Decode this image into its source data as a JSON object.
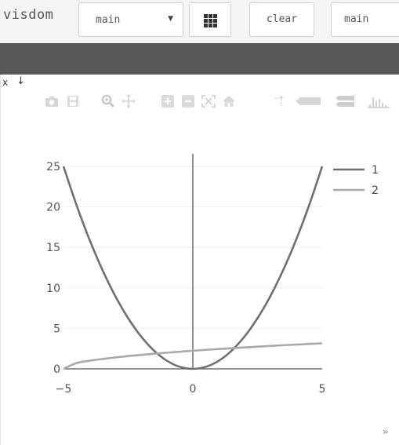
{
  "toolbar": {
    "brand": "visdom",
    "env_select_value": "main",
    "clear_label": "clear",
    "view_input_value": "main"
  },
  "pane": {
    "close_label": "x",
    "save_icon": "download-arrow-icon",
    "resize_icon": "resize-grip-icon",
    "modebar_icons": [
      "camera-icon",
      "save-icon",
      "zoom-icon",
      "pan-icon",
      "zoom-in-icon",
      "zoom-out-icon",
      "autoscale-icon",
      "home-icon",
      "spike-lines-icon",
      "hover-closest-icon",
      "hover-compare-icon",
      "plotly-logo-icon"
    ]
  },
  "colors": {
    "series_1": "#6f6f6f",
    "series_2": "#a9a9a9",
    "axis": "#555555",
    "grid": "#eeeeee"
  },
  "chart_data": {
    "type": "line",
    "x_range": [
      -5,
      5
    ],
    "y_range": [
      0,
      25
    ],
    "x_ticks": [
      -5,
      0,
      5
    ],
    "x_tick_labels": [
      "−5",
      "0",
      "5"
    ],
    "y_ticks": [
      0,
      5,
      10,
      15,
      20,
      25
    ],
    "y_tick_labels": [
      "0",
      "5",
      "10",
      "15",
      "20",
      "25"
    ],
    "grid": true,
    "legend_position": "top-right",
    "title": "",
    "xlabel": "",
    "ylabel": "",
    "series": [
      {
        "name": "1",
        "x": [
          -5,
          -4.5,
          -4,
          -3.5,
          -3,
          -2.5,
          -2,
          -1.5,
          -1,
          -0.5,
          0,
          0.5,
          1,
          1.5,
          2,
          2.5,
          3,
          3.5,
          4,
          4.5,
          5
        ],
        "y": [
          25,
          20.25,
          16,
          12.25,
          9,
          6.25,
          4,
          2.25,
          1,
          0.25,
          0,
          0.25,
          1,
          2.25,
          4,
          6.25,
          9,
          12.25,
          16,
          20.25,
          25
        ]
      },
      {
        "name": "2",
        "x": [
          -5,
          -4.5,
          -4,
          -3.5,
          -3,
          -2.5,
          -2,
          -1.5,
          -1,
          -0.5,
          0,
          0.5,
          1,
          1.5,
          2,
          2.5,
          3,
          3.5,
          4,
          4.5,
          5
        ],
        "y": [
          0,
          0.71,
          1,
          1.22,
          1.41,
          1.58,
          1.73,
          1.87,
          2,
          2.12,
          2.24,
          2.35,
          2.45,
          2.55,
          2.65,
          2.74,
          2.83,
          2.92,
          3,
          3.08,
          3.16
        ]
      }
    ]
  }
}
